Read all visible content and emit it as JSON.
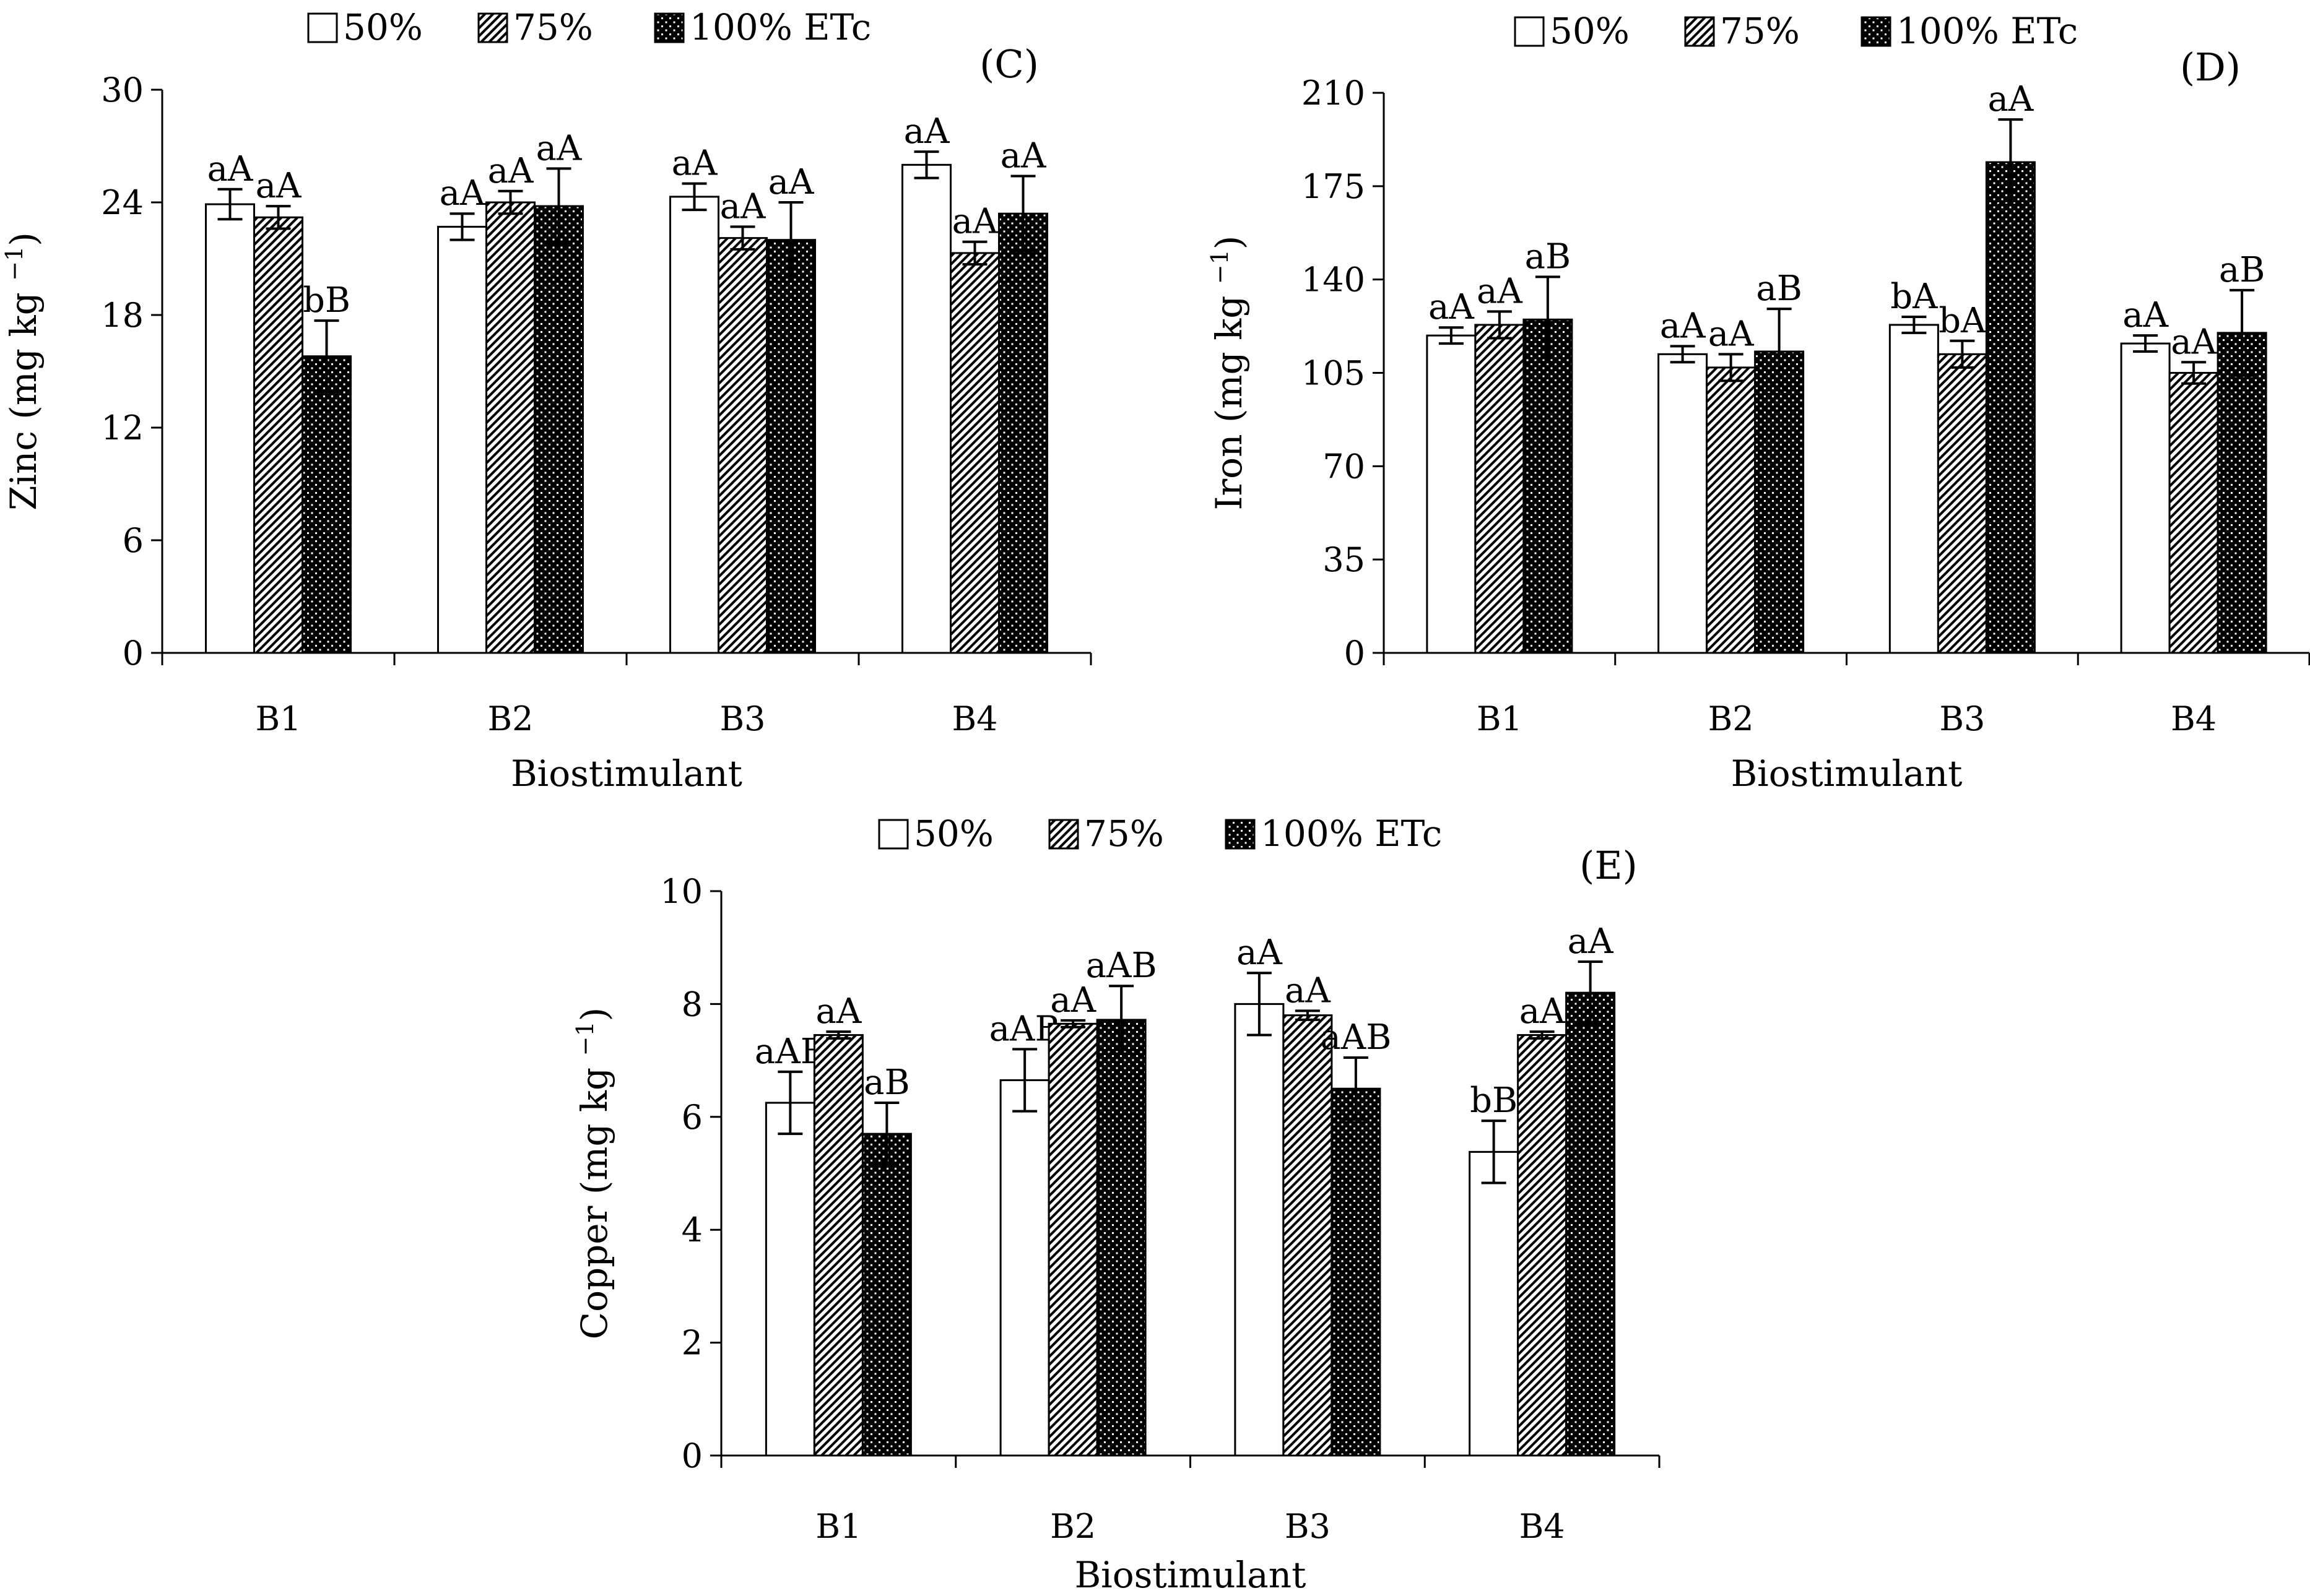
{
  "chart_data": [
    {
      "type": "bar",
      "panel_label": "(C)",
      "categories": [
        "B1",
        "B2",
        "B3",
        "B4"
      ],
      "xlabel": "Biostimulant",
      "ylabel": "Zinc (mg kg",
      "ylabel_sup": "−1",
      "ylabel_close": ")",
      "ylim": [
        0,
        30
      ],
      "yticks": [
        0,
        6,
        12,
        18,
        24,
        30
      ],
      "legend": [
        "50%",
        "75%",
        "100% ETc"
      ],
      "series": [
        {
          "name": "50%",
          "values": [
            23.9,
            22.7,
            24.3,
            26.0
          ],
          "errors": [
            0.8,
            0.7,
            0.7,
            0.7
          ],
          "labels": [
            "aA",
            "aA",
            "aA",
            "aA"
          ]
        },
        {
          "name": "75%",
          "values": [
            23.2,
            24.0,
            22.1,
            21.3
          ],
          "errors": [
            0.6,
            0.6,
            0.6,
            0.6
          ],
          "labels": [
            "aA",
            "aA",
            "aA",
            "aA"
          ]
        },
        {
          "name": "100% ETc",
          "values": [
            15.8,
            23.8,
            22.0,
            23.4
          ],
          "errors": [
            1.9,
            2.0,
            2.0,
            2.0
          ],
          "labels": [
            "bB",
            "aA",
            "aA",
            "aA"
          ]
        }
      ]
    },
    {
      "type": "bar",
      "panel_label": "(D)",
      "categories": [
        "B1",
        "B2",
        "B3",
        "B4"
      ],
      "xlabel": "Biostimulant",
      "ylabel": "Iron (mg kg",
      "ylabel_sup": "−1",
      "ylabel_close": ")",
      "ylim": [
        0,
        210
      ],
      "yticks": [
        0,
        35,
        70,
        105,
        140,
        175,
        210
      ],
      "legend": [
        "50%",
        "75%",
        "100% ETc"
      ],
      "series": [
        {
          "name": "50%",
          "values": [
            119,
            112,
            123,
            116
          ],
          "errors": [
            3,
            3,
            3,
            3
          ],
          "labels": [
            "aA",
            "aA",
            "bA",
            "aA"
          ]
        },
        {
          "name": "75%",
          "values": [
            123,
            107,
            112,
            105
          ],
          "errors": [
            5,
            5,
            5,
            4
          ],
          "labels": [
            "aA",
            "aA",
            "bA",
            "aA"
          ]
        },
        {
          "name": "100% ETc",
          "values": [
            125,
            113,
            184,
            120
          ],
          "errors": [
            16,
            16,
            16,
            16
          ],
          "labels": [
            "aB",
            "aB",
            "aA",
            "aB"
          ]
        }
      ]
    },
    {
      "type": "bar",
      "panel_label": "(E)",
      "categories": [
        "B1",
        "B2",
        "B3",
        "B4"
      ],
      "xlabel": "Biostimulant",
      "ylabel": "Copper (mg kg",
      "ylabel_sup": "−1",
      "ylabel_close": ")",
      "ylim": [
        0,
        10
      ],
      "yticks": [
        0,
        2,
        4,
        6,
        8,
        10
      ],
      "legend": [
        "50%",
        "75%",
        "100% ETc"
      ],
      "series": [
        {
          "name": "50%",
          "values": [
            6.25,
            6.65,
            8.0,
            5.38
          ],
          "errors": [
            0.55,
            0.55,
            0.55,
            0.55
          ],
          "labels": [
            "aAB",
            "aAB",
            "aA",
            "bB"
          ]
        },
        {
          "name": "75%",
          "values": [
            7.45,
            7.65,
            7.8,
            7.45
          ],
          "errors": [
            0.06,
            0.06,
            0.08,
            0.06
          ],
          "labels": [
            "aA",
            "aA",
            "aA",
            "aA"
          ]
        },
        {
          "name": "100% ETc",
          "values": [
            5.7,
            7.72,
            6.5,
            8.2
          ],
          "errors": [
            0.55,
            0.6,
            0.55,
            0.55
          ],
          "labels": [
            "aB",
            "aAB",
            "aAB",
            "aA"
          ]
        }
      ]
    }
  ]
}
